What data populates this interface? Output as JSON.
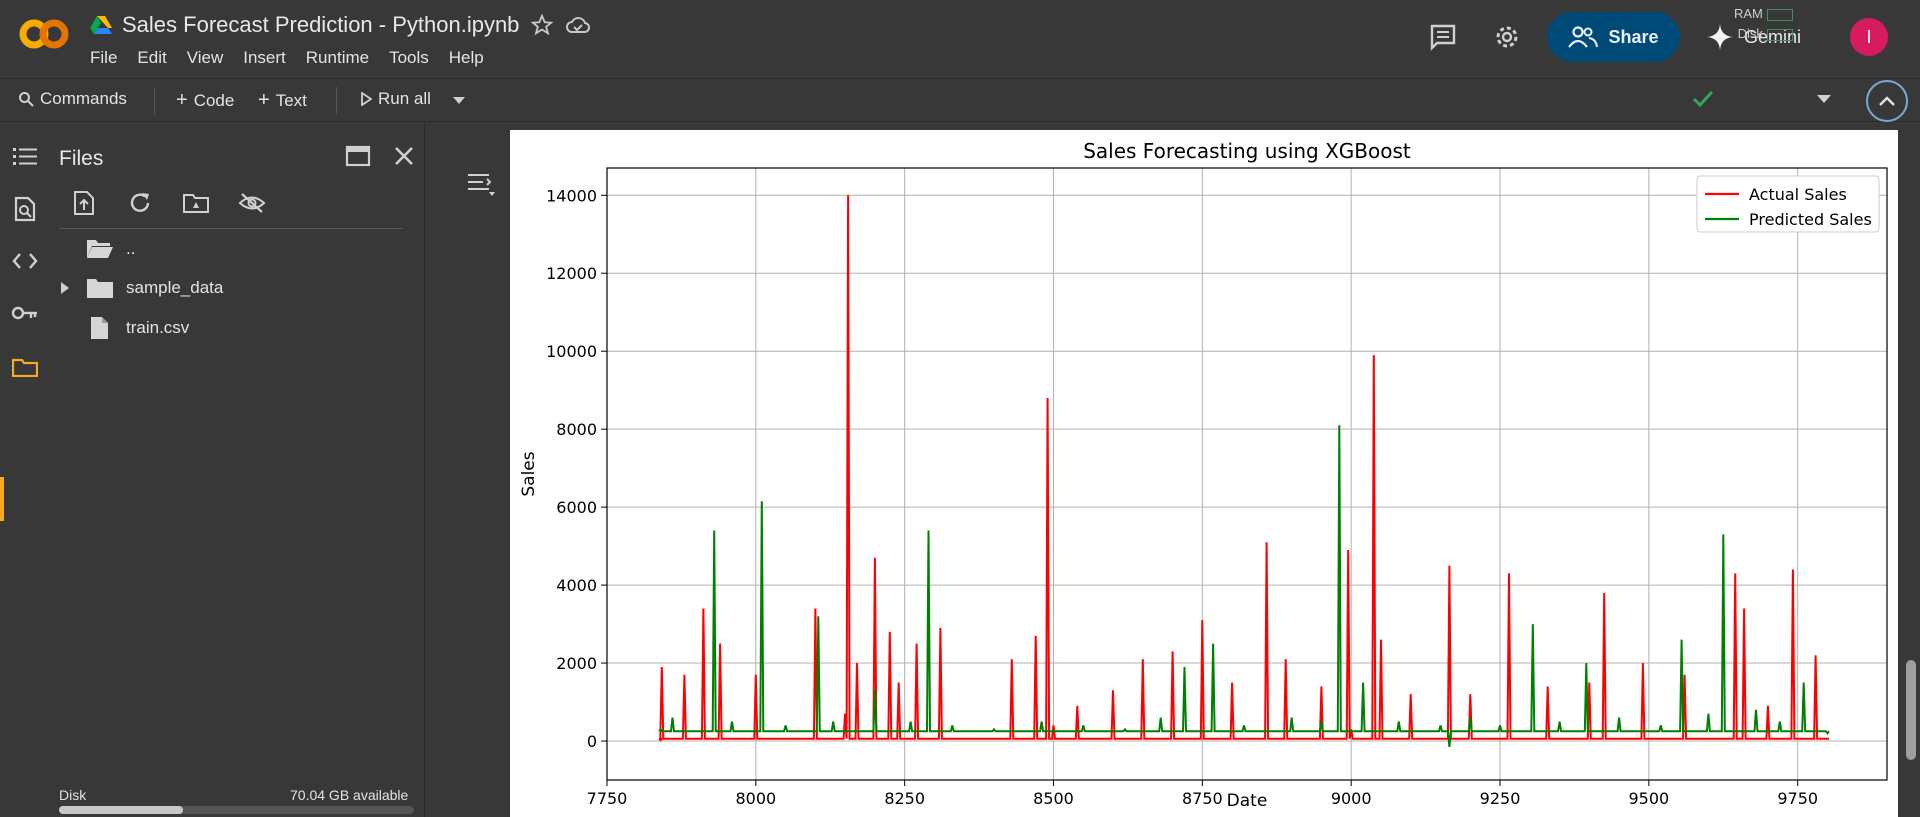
{
  "header": {
    "doc_title": "Sales Forecast Prediction - Python.ipynb",
    "menu": [
      "File",
      "Edit",
      "View",
      "Insert",
      "Runtime",
      "Tools",
      "Help"
    ],
    "share_label": "Share",
    "gemini_label": "Gemini",
    "avatar_initial": "I"
  },
  "toolbar": {
    "commands_label": "Commands",
    "code_label": "Code",
    "text_label": "Text",
    "run_all_label": "Run all",
    "ram_label": "RAM",
    "disk_label": "Disk"
  },
  "files_panel": {
    "title": "Files",
    "items": [
      {
        "label": "..",
        "kind": "folder-up"
      },
      {
        "label": "sample_data",
        "kind": "folder"
      },
      {
        "label": "train.csv",
        "kind": "file"
      }
    ],
    "disk_label": "Disk",
    "disk_available": "70.04 GB available",
    "disk_used_fraction": 0.35
  },
  "colors": {
    "accent_orange": "#f9a825",
    "share_bg": "#004a77",
    "avatar_bg": "#d81b60",
    "actual": "#ff0000",
    "predicted": "#008000"
  },
  "chart_data": {
    "type": "line",
    "title": "Sales Forecasting using XGBoost",
    "xlabel": "Date",
    "ylabel": "Sales",
    "xlim": [
      7750,
      9900
    ],
    "ylim": [
      -1000,
      14700
    ],
    "xticks": [
      7750,
      8000,
      8250,
      8500,
      8750,
      9000,
      9250,
      9500,
      9750
    ],
    "yticks": [
      0,
      2000,
      4000,
      6000,
      8000,
      10000,
      12000,
      14000
    ],
    "grid": true,
    "legend": "top-right",
    "series": [
      {
        "name": "Actual Sales",
        "color": "#ff0000",
        "x": [
          7840,
          7842,
          7880,
          7912,
          7940,
          8000,
          8100,
          8150,
          8155,
          8170,
          8200,
          8225,
          8240,
          8270,
          8310,
          8430,
          8470,
          8490,
          8500,
          8540,
          8600,
          8650,
          8700,
          8750,
          8800,
          8858,
          8890,
          8950,
          8995,
          9000,
          9038,
          9050,
          9100,
          9165,
          9200,
          9265,
          9330,
          9400,
          9425,
          9490,
          9560,
          9645,
          9660,
          9700,
          9742,
          9780,
          9800
        ],
        "y": [
          20,
          1900,
          1700,
          3400,
          2500,
          1700,
          3400,
          700,
          14000,
          2000,
          4700,
          2800,
          1500,
          2500,
          2900,
          2100,
          2700,
          8800,
          400,
          900,
          1300,
          2100,
          2300,
          3100,
          1500,
          5100,
          2100,
          1400,
          4900,
          300,
          9900,
          2600,
          1200,
          4500,
          1200,
          4300,
          1400,
          1500,
          3800,
          2000,
          1700,
          4300,
          3400,
          900,
          4400,
          2200,
          60
        ]
      },
      {
        "name": "Predicted Sales",
        "color": "#008000",
        "x": [
          7840,
          7860,
          7930,
          7960,
          8010,
          8050,
          8105,
          8130,
          8200,
          8260,
          8290,
          8330,
          8400,
          8480,
          8550,
          8620,
          8680,
          8720,
          8768,
          8820,
          8900,
          8950,
          8980,
          9020,
          9080,
          9150,
          9165,
          9200,
          9250,
          9305,
          9350,
          9395,
          9450,
          9520,
          9555,
          9600,
          9625,
          9680,
          9720,
          9760,
          9800
        ],
        "y": [
          300,
          600,
          5400,
          500,
          6150,
          400,
          3200,
          500,
          1300,
          500,
          5400,
          400,
          300,
          500,
          400,
          300,
          600,
          1900,
          2500,
          400,
          600,
          500,
          8100,
          1500,
          500,
          400,
          -150,
          600,
          400,
          3000,
          500,
          2000,
          600,
          400,
          2600,
          700,
          5300,
          800,
          500,
          1500,
          200
        ]
      }
    ]
  }
}
